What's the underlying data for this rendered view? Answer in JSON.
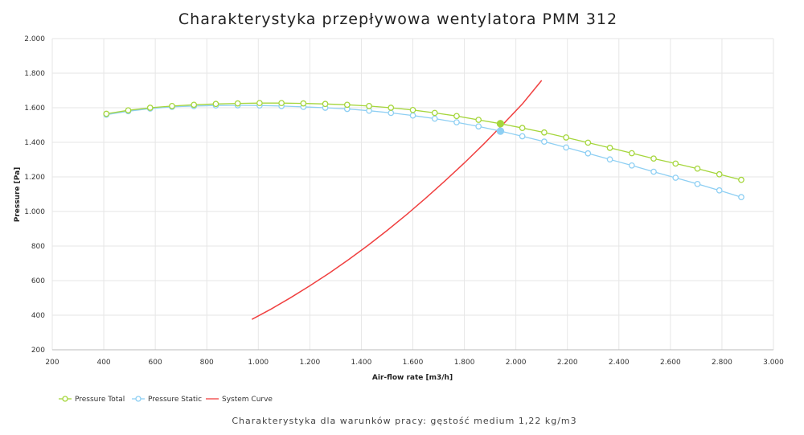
{
  "chart_data": {
    "type": "line",
    "title": "Charakterystyka przepływowa wentylatora PMM 312",
    "subtitle": "Charakterystyka dla warunków pracy: gęstość medium 1,22 kg/m3",
    "xlabel": "Air-flow rate [m3/h]",
    "ylabel": "Pressure [Pa]",
    "xlim": [
      200,
      3000
    ],
    "ylim": [
      200,
      2000
    ],
    "x_ticks": [
      200,
      400,
      600,
      800,
      1000,
      1200,
      1400,
      1600,
      1800,
      2000,
      2200,
      2400,
      2600,
      2800,
      3000
    ],
    "x_tick_labels": [
      "200",
      "400",
      "600",
      "800",
      "1.000",
      "1.200",
      "1.400",
      "1.600",
      "1.800",
      "2.000",
      "2.200",
      "2.400",
      "2.600",
      "2.800",
      "3.000"
    ],
    "y_ticks": [
      200,
      400,
      600,
      800,
      1000,
      1200,
      1400,
      1600,
      1800,
      2000
    ],
    "y_tick_labels": [
      "200",
      "400",
      "600",
      "800",
      "1.000",
      "1.200",
      "1.400",
      "1.600",
      "1.800",
      "2.000"
    ],
    "grid": true,
    "legend_position": "bottom-left",
    "series": [
      {
        "name": "Pressure Total",
        "color": "#a5d63c",
        "marker": "circle",
        "x": [
          410,
          495,
          580,
          665,
          750,
          835,
          920,
          1005,
          1090,
          1175,
          1260,
          1345,
          1430,
          1515,
          1600,
          1685,
          1770,
          1855,
          1940,
          2025,
          2110,
          2195,
          2280,
          2365,
          2450,
          2535,
          2620,
          2705,
          2790,
          2875
        ],
        "y": [
          1565,
          1585,
          1600,
          1610,
          1617,
          1622,
          1625,
          1627,
          1627,
          1625,
          1622,
          1617,
          1610,
          1600,
          1587,
          1570,
          1552,
          1530,
          1508,
          1483,
          1457,
          1428,
          1398,
          1368,
          1337,
          1306,
          1277,
          1248,
          1215,
          1183
        ]
      },
      {
        "name": "Pressure Static",
        "color": "#8ecff3",
        "marker": "circle",
        "x": [
          410,
          495,
          580,
          665,
          750,
          835,
          920,
          1005,
          1090,
          1175,
          1260,
          1345,
          1430,
          1515,
          1600,
          1685,
          1770,
          1855,
          1940,
          2025,
          2110,
          2195,
          2280,
          2365,
          2450,
          2535,
          2620,
          2705,
          2790,
          2875
        ],
        "y": [
          1560,
          1580,
          1595,
          1605,
          1610,
          1613,
          1614,
          1613,
          1610,
          1605,
          1600,
          1593,
          1583,
          1570,
          1555,
          1537,
          1516,
          1492,
          1465,
          1435,
          1404,
          1370,
          1336,
          1301,
          1266,
          1230,
          1195,
          1159,
          1122,
          1083
        ]
      },
      {
        "name": "System Curve",
        "color": "#f04040",
        "marker": "none",
        "x": [
          975,
          1050,
          1125,
          1200,
          1275,
          1350,
          1425,
          1500,
          1575,
          1650,
          1725,
          1800,
          1875,
          1950,
          2025,
          2100
        ],
        "y": [
          376,
          436,
          501,
          570,
          643,
          721,
          803,
          890,
          981,
          1077,
          1177,
          1281,
          1390,
          1504,
          1622,
          1758
        ]
      }
    ],
    "operating_points": [
      {
        "series": "Pressure Total",
        "x": 1940,
        "y": 1508
      },
      {
        "series": "Pressure Static",
        "x": 1940,
        "y": 1465
      }
    ]
  }
}
